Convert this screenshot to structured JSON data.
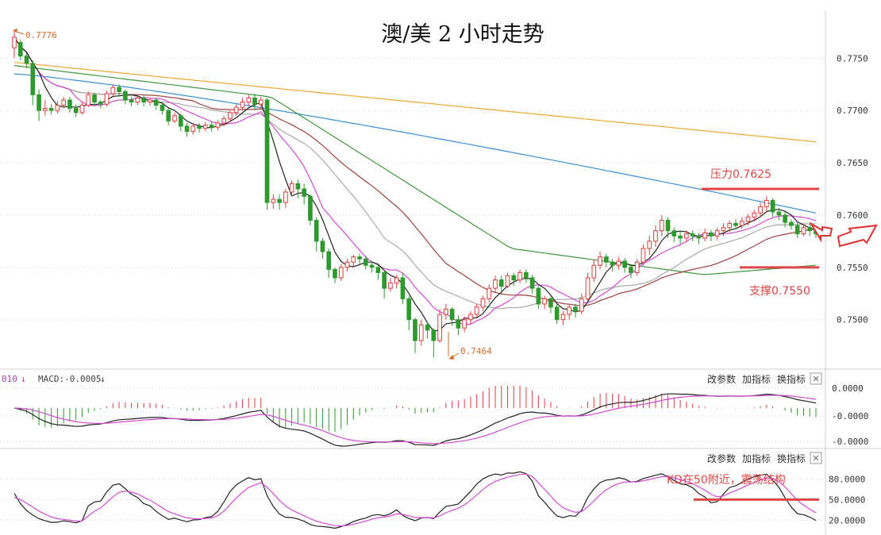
{
  "chart_data": {
    "type": "line",
    "title": "澳/美 2 小时走势",
    "main": {
      "ylim": [
        0.7455,
        0.7795
      ],
      "yticks": [
        "0.7750",
        "0.7700",
        "0.7650",
        "0.7600",
        "0.7550",
        "0.7500"
      ],
      "high_marker": "0.7776",
      "low_marker": "0.7464",
      "resistance_label": "压力0.7625",
      "resistance_value": 0.7625,
      "support_label": "支撑0.7550",
      "support_value": 0.755,
      "grid": true,
      "candles": [
        [
          0.776,
          0.777,
          0.775,
          0.7776
        ],
        [
          0.7765,
          0.7752,
          0.7748,
          0.7768
        ],
        [
          0.7752,
          0.7745,
          0.774,
          0.7755
        ],
        [
          0.7745,
          0.7715,
          0.7705,
          0.7748
        ],
        [
          0.7715,
          0.77,
          0.769,
          0.772
        ],
        [
          0.77,
          0.7702,
          0.7695,
          0.771
        ],
        [
          0.7702,
          0.77,
          0.7696,
          0.7706
        ],
        [
          0.77,
          0.7705,
          0.7697,
          0.7709
        ],
        [
          0.7705,
          0.771,
          0.7702,
          0.7713
        ],
        [
          0.771,
          0.7702,
          0.7698,
          0.7713
        ],
        [
          0.7702,
          0.7698,
          0.7694,
          0.7706
        ],
        [
          0.7698,
          0.7705,
          0.7696,
          0.7708
        ],
        [
          0.7705,
          0.7715,
          0.7703,
          0.7718
        ],
        [
          0.7715,
          0.7708,
          0.7704,
          0.7717
        ],
        [
          0.7708,
          0.7706,
          0.7702,
          0.771
        ],
        [
          0.7706,
          0.7716,
          0.7704,
          0.7719
        ],
        [
          0.7716,
          0.7722,
          0.7714,
          0.7725
        ],
        [
          0.7722,
          0.7718,
          0.7713,
          0.7725
        ],
        [
          0.7718,
          0.771,
          0.7706,
          0.772
        ],
        [
          0.771,
          0.7708,
          0.7704,
          0.7713
        ],
        [
          0.7708,
          0.7712,
          0.7705,
          0.7714
        ],
        [
          0.7712,
          0.7708,
          0.7704,
          0.7714
        ],
        [
          0.7708,
          0.771,
          0.7705,
          0.7712
        ],
        [
          0.771,
          0.7705,
          0.7701,
          0.7712
        ],
        [
          0.7705,
          0.77,
          0.7696,
          0.7707
        ],
        [
          0.77,
          0.769,
          0.7686,
          0.7702
        ],
        [
          0.769,
          0.7695,
          0.7688,
          0.7698
        ],
        [
          0.7695,
          0.7685,
          0.768,
          0.7697
        ],
        [
          0.7685,
          0.768,
          0.7675,
          0.7688
        ],
        [
          0.768,
          0.7685,
          0.7677,
          0.7688
        ],
        [
          0.7685,
          0.7683,
          0.7679,
          0.7688
        ],
        [
          0.7683,
          0.7686,
          0.768,
          0.7689
        ],
        [
          0.7686,
          0.7684,
          0.768,
          0.7689
        ],
        [
          0.7684,
          0.7688,
          0.7681,
          0.7691
        ],
        [
          0.7688,
          0.7692,
          0.7685,
          0.7695
        ],
        [
          0.7692,
          0.7698,
          0.769,
          0.77
        ],
        [
          0.7698,
          0.7703,
          0.7695,
          0.7706
        ],
        [
          0.7703,
          0.7708,
          0.77,
          0.7712
        ],
        [
          0.7708,
          0.7712,
          0.7704,
          0.7715
        ],
        [
          0.7712,
          0.7706,
          0.77,
          0.7716
        ],
        [
          0.7706,
          0.771,
          0.7702,
          0.7713
        ],
        [
          0.771,
          0.7612,
          0.7605,
          0.7712
        ],
        [
          0.7612,
          0.7615,
          0.7606,
          0.762
        ],
        [
          0.7615,
          0.7612,
          0.7605,
          0.762
        ],
        [
          0.7612,
          0.7622,
          0.7607,
          0.7625
        ],
        [
          0.7622,
          0.763,
          0.7618,
          0.7633
        ],
        [
          0.763,
          0.7625,
          0.7616,
          0.7634
        ],
        [
          0.7625,
          0.7618,
          0.761,
          0.763
        ],
        [
          0.7618,
          0.7595,
          0.759,
          0.762
        ],
        [
          0.7595,
          0.7575,
          0.7565,
          0.7598
        ],
        [
          0.7575,
          0.7565,
          0.7558,
          0.7578
        ],
        [
          0.7565,
          0.7548,
          0.754,
          0.7568
        ],
        [
          0.7548,
          0.754,
          0.7535,
          0.755
        ],
        [
          0.754,
          0.755,
          0.7537,
          0.7553
        ],
        [
          0.755,
          0.7555,
          0.7546,
          0.7558
        ],
        [
          0.7555,
          0.756,
          0.755,
          0.7562
        ],
        [
          0.756,
          0.7558,
          0.7553,
          0.7563
        ],
        [
          0.7558,
          0.7552,
          0.7548,
          0.7561
        ],
        [
          0.7552,
          0.755,
          0.7545,
          0.7556
        ],
        [
          0.755,
          0.7545,
          0.7538,
          0.7553
        ],
        [
          0.7545,
          0.753,
          0.752,
          0.7548
        ],
        [
          0.753,
          0.7535,
          0.7527,
          0.754
        ],
        [
          0.7535,
          0.754,
          0.753,
          0.7543
        ],
        [
          0.754,
          0.752,
          0.7515,
          0.7545
        ],
        [
          0.752,
          0.75,
          0.749,
          0.7523
        ],
        [
          0.75,
          0.748,
          0.7468,
          0.7502
        ],
        [
          0.748,
          0.7495,
          0.7475,
          0.75
        ],
        [
          0.7495,
          0.749,
          0.7482,
          0.7498
        ],
        [
          0.749,
          0.748,
          0.7464,
          0.7492
        ],
        [
          0.748,
          0.7505,
          0.7478,
          0.751
        ],
        [
          0.7505,
          0.751,
          0.75,
          0.7515
        ],
        [
          0.751,
          0.75,
          0.7494,
          0.7512
        ],
        [
          0.75,
          0.7492,
          0.7485,
          0.7504
        ],
        [
          0.7492,
          0.75,
          0.7488,
          0.7503
        ],
        [
          0.75,
          0.7505,
          0.7496,
          0.7508
        ],
        [
          0.7505,
          0.7512,
          0.7502,
          0.7515
        ],
        [
          0.7512,
          0.752,
          0.7508,
          0.7523
        ],
        [
          0.752,
          0.753,
          0.7516,
          0.7534
        ],
        [
          0.753,
          0.7538,
          0.7526,
          0.7542
        ],
        [
          0.7538,
          0.7532,
          0.7525,
          0.7542
        ],
        [
          0.7532,
          0.7542,
          0.753,
          0.7545
        ],
        [
          0.7542,
          0.7538,
          0.7532,
          0.7545
        ],
        [
          0.7538,
          0.7545,
          0.7535,
          0.7548
        ],
        [
          0.7545,
          0.754,
          0.7535,
          0.7548
        ],
        [
          0.754,
          0.753,
          0.7525,
          0.7543
        ],
        [
          0.753,
          0.7515,
          0.751,
          0.7532
        ],
        [
          0.7515,
          0.752,
          0.751,
          0.7523
        ],
        [
          0.752,
          0.7512,
          0.7506,
          0.7522
        ],
        [
          0.7512,
          0.75,
          0.7496,
          0.7515
        ],
        [
          0.75,
          0.7505,
          0.7495,
          0.7508
        ],
        [
          0.7505,
          0.7512,
          0.75,
          0.7515
        ],
        [
          0.7512,
          0.7508,
          0.7502,
          0.7515
        ],
        [
          0.7508,
          0.752,
          0.7505,
          0.7525
        ],
        [
          0.752,
          0.754,
          0.7518,
          0.7545
        ],
        [
          0.754,
          0.7552,
          0.7536,
          0.7558
        ],
        [
          0.7552,
          0.756,
          0.7548,
          0.7565
        ],
        [
          0.756,
          0.7555,
          0.755,
          0.7563
        ],
        [
          0.7555,
          0.7552,
          0.7546,
          0.7558
        ],
        [
          0.7552,
          0.7556,
          0.7548,
          0.756
        ],
        [
          0.7556,
          0.755,
          0.7545,
          0.7559
        ],
        [
          0.755,
          0.7545,
          0.754,
          0.7553
        ],
        [
          0.7545,
          0.7555,
          0.7542,
          0.7558
        ],
        [
          0.7555,
          0.7568,
          0.7552,
          0.7572
        ],
        [
          0.7568,
          0.7575,
          0.7562,
          0.758
        ],
        [
          0.7575,
          0.7585,
          0.757,
          0.759
        ],
        [
          0.7585,
          0.7595,
          0.758,
          0.76
        ],
        [
          0.7595,
          0.7585,
          0.7578,
          0.7598
        ],
        [
          0.7585,
          0.758,
          0.7574,
          0.7588
        ],
        [
          0.758,
          0.7578,
          0.7572,
          0.7584
        ],
        [
          0.7578,
          0.7582,
          0.7574,
          0.7585
        ],
        [
          0.7582,
          0.758,
          0.7575,
          0.7585
        ],
        [
          0.758,
          0.7578,
          0.7572,
          0.7583
        ],
        [
          0.7578,
          0.7583,
          0.7575,
          0.7587
        ],
        [
          0.7583,
          0.758,
          0.7575,
          0.7586
        ],
        [
          0.758,
          0.7585,
          0.7576,
          0.7588
        ],
        [
          0.7585,
          0.7588,
          0.758,
          0.7592
        ],
        [
          0.7588,
          0.7592,
          0.7584,
          0.7595
        ],
        [
          0.7592,
          0.759,
          0.7586,
          0.7596
        ],
        [
          0.759,
          0.7594,
          0.7587,
          0.7598
        ],
        [
          0.7594,
          0.7598,
          0.759,
          0.7601
        ],
        [
          0.7598,
          0.7602,
          0.7594,
          0.7605
        ],
        [
          0.7602,
          0.7608,
          0.7598,
          0.7612
        ],
        [
          0.7608,
          0.7614,
          0.7603,
          0.7618
        ],
        [
          0.7614,
          0.7603,
          0.7598,
          0.7616
        ],
        [
          0.7603,
          0.76,
          0.7595,
          0.7607
        ],
        [
          0.76,
          0.7593,
          0.7588,
          0.7603
        ],
        [
          0.7593,
          0.759,
          0.7586,
          0.7596
        ],
        [
          0.759,
          0.7582,
          0.7578,
          0.7593
        ],
        [
          0.7582,
          0.7588,
          0.758,
          0.7592
        ],
        [
          0.7588,
          0.7585,
          0.758,
          0.7592
        ],
        [
          0.7585,
          0.7582,
          0.7578,
          0.759
        ]
      ]
    },
    "macd": {
      "label": "MACD:-0.0005",
      "label_prefix": "010",
      "arrow_left": "↓",
      "arrow_right": "↓",
      "yticks": [
        "0.0000",
        "-0.0000",
        "-0.0000"
      ],
      "buttons": [
        "改参数",
        "加指标",
        "换指标"
      ],
      "close_icon": "✕"
    },
    "kd": {
      "yticks": [
        "80.0000",
        "50.0000",
        "20.0000"
      ],
      "ylim": [
        10,
        100
      ],
      "annotation": "KD在50附近，震荡结构",
      "buttons": [
        "改参数",
        "加指标",
        "换指标"
      ],
      "close_icon": "✕",
      "level_line": 50
    },
    "colors": {
      "up": "#e03c3c",
      "down": "#2e9a2e",
      "ma_orange": "#f0a830",
      "ma_blue": "#3a8fd8",
      "ma_green": "#3c9a3c",
      "ma_brown": "#a04040",
      "ma_gray": "#aaaaaa",
      "ma_magenta": "#d44ad4",
      "ma_black": "#222222",
      "annotation": "#e04545"
    }
  }
}
